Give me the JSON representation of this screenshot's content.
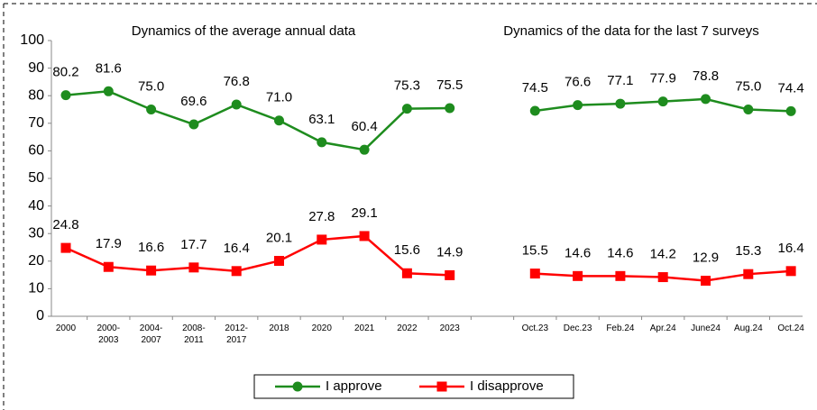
{
  "chart_data": {
    "type": "line",
    "annotations": [
      "Dynamics of the average annual data",
      "Dynamics of the data for the last 7 surveys"
    ],
    "categories": [
      "2000",
      "2000-\n2003",
      "2004-\n2007",
      "2008-\n2011",
      "2012-\n2017",
      "2018",
      "2020",
      "2021",
      "2022",
      "2023",
      null,
      "Oct.23",
      "Dec.23",
      "Feb.24",
      "Apr.24",
      "June24",
      "Aug.24",
      "Oct.24"
    ],
    "series": [
      {
        "name": "I approve",
        "color": "#1e8c1e",
        "marker": "circle",
        "values": [
          80.2,
          81.6,
          75.0,
          69.6,
          76.8,
          71.0,
          63.1,
          60.4,
          75.3,
          75.5,
          null,
          74.5,
          76.6,
          77.1,
          77.9,
          78.8,
          75.0,
          74.4
        ],
        "value_labels": [
          "80.2",
          "81.6",
          "75.0",
          "69.6",
          "76.8",
          "71.0",
          "63.1",
          "60.4",
          "75.3",
          "75.5",
          null,
          "74.5",
          "76.6",
          "77.1",
          "77.9",
          "78.8",
          "75.0",
          "74.4"
        ]
      },
      {
        "name": "I disapprove",
        "color": "#ff0000",
        "marker": "square",
        "values": [
          24.8,
          17.9,
          16.6,
          17.7,
          16.4,
          20.1,
          27.8,
          29.1,
          15.6,
          14.9,
          null,
          15.5,
          14.6,
          14.6,
          14.2,
          12.9,
          15.3,
          16.4
        ],
        "value_labels": [
          "24.8",
          "17.9",
          "16.6",
          "17.7",
          "16.4",
          "20.1",
          "27.8",
          "29.1",
          "15.6",
          "14.9",
          null,
          "15.5",
          "14.6",
          "14.6",
          "14.2",
          "12.9",
          "15.3",
          "16.4"
        ]
      }
    ],
    "ylim": [
      0,
      100
    ],
    "yticks": [
      0,
      10,
      20,
      30,
      40,
      50,
      60,
      70,
      80,
      90,
      100
    ],
    "legend": "bottom"
  }
}
